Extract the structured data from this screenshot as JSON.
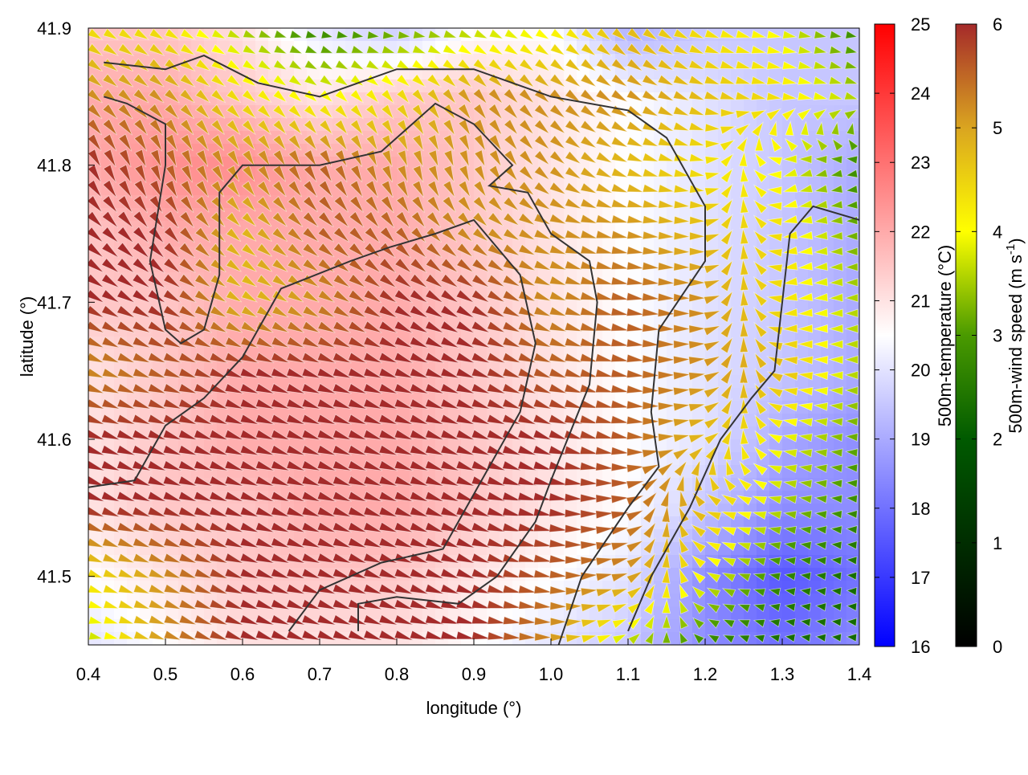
{
  "chart_data": {
    "type": "heatmap",
    "overlay": "vector field + contours",
    "xlabel": "longitude (°)",
    "ylabel": "latitude (°)",
    "xlim": [
      0.4,
      1.4
    ],
    "ylim": [
      41.45,
      41.9
    ],
    "xticks": [
      "0.4",
      "0.5",
      "0.6",
      "0.7",
      "0.8",
      "0.9",
      "1.0",
      "1.1",
      "1.2",
      "1.3",
      "1.4"
    ],
    "yticks": [
      "41.5",
      "41.6",
      "41.7",
      "41.8",
      "41.9"
    ],
    "grid_lon": [
      0.4,
      0.5,
      0.6,
      0.7,
      0.8,
      0.9,
      1.0,
      1.1,
      1.2,
      1.3,
      1.4
    ],
    "grid_lat": [
      41.9,
      41.85,
      41.8,
      41.75,
      41.7,
      41.65,
      41.6,
      41.55,
      41.5,
      41.45
    ],
    "temperature": [
      [
        21.5,
        21.5,
        21,
        20,
        19.5,
        20.5,
        20.5,
        19,
        19.5,
        19.5,
        19.5
      ],
      [
        22,
        22,
        21.5,
        21,
        21.5,
        21.5,
        21,
        20.5,
        20,
        19.5,
        19.5
      ],
      [
        22,
        22.5,
        22.5,
        22,
        22,
        21.5,
        21,
        20.5,
        20,
        19.5,
        19
      ],
      [
        21.5,
        22,
        22,
        22,
        22,
        21.5,
        21,
        20.5,
        20,
        19.5,
        19
      ],
      [
        21.5,
        21.5,
        22,
        22,
        22,
        21.5,
        21,
        20.5,
        20,
        19.5,
        19
      ],
      [
        21,
        21.5,
        22,
        22,
        22,
        21.5,
        21,
        20.5,
        20,
        19.5,
        19
      ],
      [
        21,
        21.5,
        22,
        22,
        22,
        21.5,
        21,
        20.5,
        20,
        19,
        18.5
      ],
      [
        21,
        21.5,
        21.5,
        22,
        22,
        21.5,
        21,
        20.5,
        19.5,
        18.5,
        18.5
      ],
      [
        20.5,
        21,
        21.5,
        21.5,
        21.5,
        21,
        20.5,
        20,
        18.5,
        17.5,
        18
      ],
      [
        20,
        20.5,
        21,
        21,
        21,
        20.5,
        20,
        19.5,
        18.5,
        18,
        18.5
      ]
    ],
    "wind_speed": [
      [
        4,
        4,
        3,
        2,
        2.5,
        3,
        3.5,
        4.5,
        4,
        3.5,
        2
      ],
      [
        5,
        5,
        4,
        3.5,
        4,
        5,
        5,
        5,
        4.5,
        4,
        3
      ],
      [
        6,
        5.5,
        5,
        5.5,
        5,
        5,
        5,
        4.5,
        4,
        3.5,
        2
      ],
      [
        6,
        6,
        4.5,
        5.5,
        5.5,
        5,
        5,
        5,
        4.5,
        4,
        2.5
      ],
      [
        6,
        6,
        4.5,
        5,
        6,
        6,
        5,
        5.5,
        5,
        4,
        3
      ],
      [
        5,
        5.5,
        6,
        6,
        6,
        6,
        5.5,
        5.5,
        5,
        4.5,
        3
      ],
      [
        6,
        6,
        6,
        6,
        6,
        6,
        6,
        5.5,
        4.5,
        3.5,
        2.5
      ],
      [
        6,
        6,
        6,
        6,
        6,
        6,
        6,
        5.5,
        4.5,
        3,
        2
      ],
      [
        4,
        5,
        6,
        6,
        6,
        6,
        5.5,
        5,
        3.5,
        2,
        1.5
      ],
      [
        3,
        5,
        6,
        6,
        6,
        6,
        5,
        3,
        2,
        1.5,
        1.5
      ]
    ],
    "wind_direction_deg": [
      [
        -30,
        -30,
        -20,
        -10,
        0,
        -20,
        -30,
        -40,
        -20,
        -10,
        -10
      ],
      [
        -40,
        -40,
        -40,
        -40,
        -50,
        -50,
        -40,
        -30,
        -20,
        -10,
        -20
      ],
      [
        -60,
        -70,
        -60,
        -60,
        -70,
        -70,
        -40,
        -20,
        -10,
        200,
        190
      ],
      [
        -40,
        -50,
        -40,
        -40,
        -50,
        -40,
        -20,
        -10,
        0,
        190,
        180
      ],
      [
        -30,
        -30,
        -30,
        -30,
        -30,
        -30,
        -20,
        -10,
        0,
        190,
        180
      ],
      [
        -20,
        -20,
        -20,
        -20,
        -20,
        -20,
        -20,
        -10,
        10,
        170,
        180
      ],
      [
        -20,
        -20,
        -20,
        -20,
        -20,
        -20,
        -20,
        -10,
        20,
        170,
        175
      ],
      [
        -20,
        -20,
        -20,
        -20,
        -20,
        -20,
        -10,
        10,
        160,
        170,
        175
      ],
      [
        -20,
        -20,
        -20,
        -20,
        -20,
        -20,
        -10,
        20,
        150,
        170,
        175
      ],
      [
        -10,
        -20,
        -20,
        -20,
        -20,
        -10,
        0,
        30,
        150,
        170,
        175
      ]
    ],
    "contours": [
      [
        [
          0.42,
          41.875
        ],
        [
          0.5,
          41.87
        ],
        [
          0.55,
          41.88
        ],
        [
          0.62,
          41.86
        ],
        [
          0.7,
          41.85
        ],
        [
          0.8,
          41.87
        ],
        [
          0.9,
          41.87
        ],
        [
          1.0,
          41.85
        ],
        [
          1.1,
          41.84
        ],
        [
          1.15,
          41.82
        ],
        [
          1.2,
          41.77
        ],
        [
          1.2,
          41.73
        ],
        [
          1.14,
          41.68
        ],
        [
          1.13,
          41.62
        ],
        [
          1.14,
          41.58
        ],
        [
          1.1,
          41.55
        ],
        [
          1.04,
          41.5
        ],
        [
          1.01,
          41.45
        ]
      ],
      [
        [
          0.42,
          41.85
        ],
        [
          0.45,
          41.845
        ],
        [
          0.5,
          41.83
        ],
        [
          0.5,
          41.8
        ],
        [
          0.48,
          41.73
        ],
        [
          0.5,
          41.68
        ],
        [
          0.52,
          41.67
        ],
        [
          0.55,
          41.68
        ],
        [
          0.57,
          41.72
        ],
        [
          0.57,
          41.78
        ],
        [
          0.6,
          41.8
        ],
        [
          0.7,
          41.8
        ],
        [
          0.78,
          41.81
        ],
        [
          0.82,
          41.83
        ],
        [
          0.85,
          41.845
        ],
        [
          0.9,
          41.83
        ],
        [
          0.95,
          41.8
        ],
        [
          0.92,
          41.785
        ],
        [
          0.97,
          41.78
        ],
        [
          1.0,
          41.75
        ],
        [
          1.05,
          41.73
        ],
        [
          1.06,
          41.7
        ],
        [
          1.05,
          41.64
        ],
        [
          1.0,
          41.57
        ],
        [
          0.98,
          41.54
        ],
        [
          0.93,
          41.5
        ],
        [
          0.88,
          41.48
        ],
        [
          0.8,
          41.485
        ],
        [
          0.75,
          41.48
        ],
        [
          0.75,
          41.46
        ]
      ],
      [
        [
          0.4,
          41.565
        ],
        [
          0.46,
          41.57
        ],
        [
          0.5,
          41.61
        ],
        [
          0.55,
          41.63
        ],
        [
          0.6,
          41.66
        ],
        [
          0.65,
          41.71
        ],
        [
          0.74,
          41.73
        ],
        [
          0.79,
          41.74
        ],
        [
          0.85,
          41.75
        ],
        [
          0.9,
          41.76
        ],
        [
          0.96,
          41.72
        ],
        [
          0.98,
          41.67
        ],
        [
          0.96,
          41.62
        ],
        [
          0.9,
          41.56
        ],
        [
          0.86,
          41.52
        ],
        [
          0.78,
          41.51
        ],
        [
          0.7,
          41.49
        ],
        [
          0.66,
          41.46
        ]
      ],
      [
        [
          1.1,
          41.46
        ],
        [
          1.13,
          41.5
        ],
        [
          1.18,
          41.55
        ],
        [
          1.22,
          41.6
        ],
        [
          1.26,
          41.63
        ],
        [
          1.29,
          41.65
        ],
        [
          1.3,
          41.7
        ],
        [
          1.31,
          41.75
        ],
        [
          1.34,
          41.77
        ],
        [
          1.4,
          41.76
        ]
      ]
    ],
    "colorbars": [
      {
        "label": "500m-temperature (°C)",
        "range": [
          16,
          25
        ],
        "ticks": [
          "16",
          "17",
          "18",
          "19",
          "20",
          "21",
          "22",
          "23",
          "24",
          "25"
        ],
        "palette": [
          "#0000ff",
          "#ffffff",
          "#ff0000"
        ]
      },
      {
        "label": "500m-wind speed (m s",
        "label_sup": "-1",
        "label_end": ")",
        "range": [
          0,
          6
        ],
        "ticks": [
          "0",
          "1",
          "2",
          "3",
          "4",
          "5",
          "6"
        ],
        "palette": [
          "#000000",
          "#005a00",
          "#4a9a00",
          "#ffff00",
          "#daa520",
          "#a52a2a"
        ]
      }
    ]
  }
}
